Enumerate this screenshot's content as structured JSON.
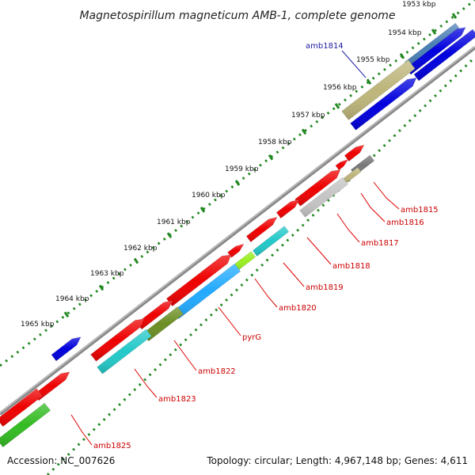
{
  "title": "Magnetospirillum magneticum AMB-1, complete genome",
  "footer": {
    "accession": "Accession: NC_007626",
    "summary": "Topology: circular; Length: 4,967,148 bp; Genes: 4,611"
  },
  "scale": {
    "ticks": [
      "1953 kbp",
      "1954 kbp",
      "1955 kbp",
      "1956 kbp",
      "1957 kbp",
      "1958 kbp",
      "1959 kbp",
      "1960 kbp",
      "1961 kbp",
      "1962 kbp",
      "1963 kbp",
      "1964 kbp",
      "1965 kbp"
    ]
  },
  "colors": {
    "red": "#ee0000",
    "blue": "#0000dd",
    "tan": "#bdb57a",
    "grey": "#777777",
    "silver": "#c4c4c4",
    "cyan": "#22c8c8",
    "skyblue": "#22aaff",
    "lime": "#99ee22",
    "olive": "#6b8e23",
    "green": "#33bb22",
    "steel": "#4a7fb5",
    "backbone": "#8a8a8a",
    "dots": "#228822",
    "leader_red": "#dd0000",
    "leader_blue": "#2222aa"
  },
  "genes": [
    {
      "name": "amb1814",
      "color": "blue"
    },
    {
      "name": "amb1815",
      "color": "red"
    },
    {
      "name": "amb1816",
      "color": "red"
    },
    {
      "name": "amb1817",
      "color": "red"
    },
    {
      "name": "amb1818",
      "color": "red"
    },
    {
      "name": "amb1819",
      "color": "red"
    },
    {
      "name": "amb1820",
      "color": "red"
    },
    {
      "name": "pyrG",
      "color": "red"
    },
    {
      "name": "amb1822",
      "color": "red"
    },
    {
      "name": "amb1823",
      "color": "red"
    },
    {
      "name": "amb1825",
      "color": "red"
    }
  ]
}
